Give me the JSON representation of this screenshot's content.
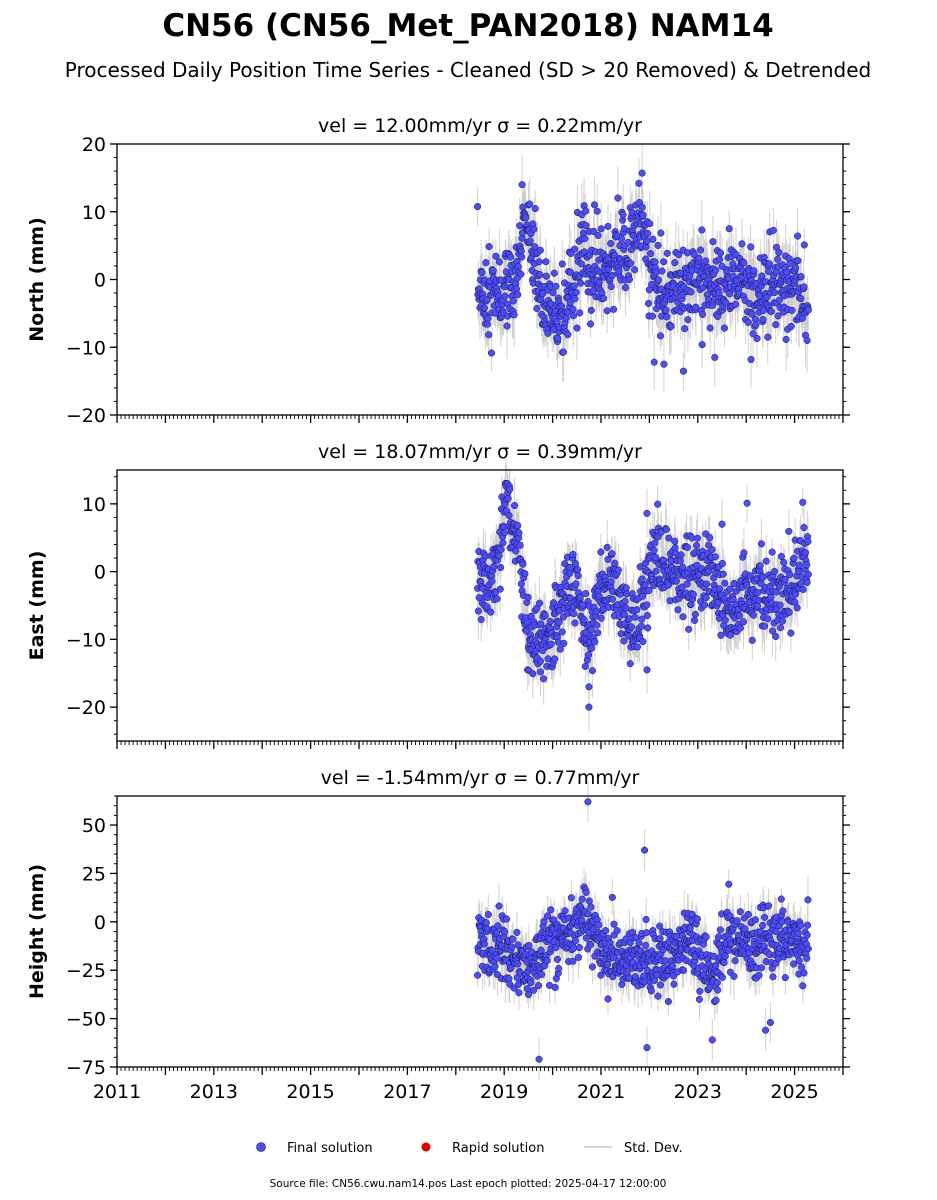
{
  "figure": {
    "title": "CN56 (CN56_Met_PAN2018) NAM14",
    "subtitle": "Processed Daily Position Time Series - Cleaned (SD > 20 Removed) & Detrended",
    "footer": "Source file: CN56.cwu.nam14.pos  Last epoch plotted: 2025-04-17 12:00:00",
    "legend": {
      "placement": "bottom-center",
      "items": [
        {
          "label": "Final solution",
          "marker": "circle",
          "color": "#4B4BFF"
        },
        {
          "label": "Rapid solution",
          "marker": "circle",
          "color": "#E00000"
        },
        {
          "label": "Std. Dev.",
          "marker": "line",
          "color": "#C8C8C8"
        }
      ]
    },
    "colors": {
      "final": "#4B4BFF",
      "marker_edge": "#1a1a40",
      "stddev": "#C8C8C8",
      "axis": "#000000"
    }
  },
  "chart_data": [
    {
      "type": "scatter",
      "component": "north",
      "title": "vel = 12.00mm/yr   σ = 0.22mm/yr",
      "ylabel": "North (mm)",
      "xlim": [
        2011.0,
        2026.0
      ],
      "ylim": [
        -20,
        20
      ],
      "yticks": [
        -20,
        -10,
        0,
        10,
        20
      ],
      "ytick_labels": [
        "−20",
        "−10",
        "0",
        "10",
        "20"
      ],
      "first_epoch": 2018.45,
      "last_epoch": 2025.29,
      "series": [
        {
          "name": "Final solution",
          "x": [
            2018.5,
            2018.75,
            2019.0,
            2019.25,
            2019.4,
            2019.6,
            2019.8,
            2020.0,
            2020.25,
            2020.5,
            2020.65,
            2020.8,
            2021.0,
            2021.2,
            2021.45,
            2021.65,
            2021.85,
            2022.0,
            2022.25,
            2022.5,
            2022.75,
            2023.0,
            2023.25,
            2023.5,
            2023.75,
            2024.0,
            2024.25,
            2024.5,
            2024.75,
            2025.0,
            2025.29
          ],
          "y": [
            -1.5,
            -2.5,
            -2.0,
            -1.0,
            9.0,
            2.0,
            -2.5,
            -4.5,
            -6.0,
            0.5,
            5.5,
            1.5,
            1.0,
            2.5,
            3.5,
            6.0,
            9.0,
            3.0,
            -3.0,
            -2.0,
            -0.5,
            1.5,
            -0.5,
            -1.5,
            0.5,
            -1.5,
            -3.0,
            0.5,
            -1.5,
            0.0,
            -2.0
          ]
        },
        {
          "name": "Std. Dev.",
          "approx_mm": 3.5
        }
      ],
      "outliers": [
        {
          "x": 2019.37,
          "y": 14.0
        },
        {
          "x": 2021.85,
          "y": 15.7
        },
        {
          "x": 2022.1,
          "y": -12.2
        },
        {
          "x": 2022.3,
          "y": -12.5
        },
        {
          "x": 2023.35,
          "y": -11.5
        },
        {
          "x": 2024.1,
          "y": -11.8
        }
      ]
    },
    {
      "type": "scatter",
      "component": "east",
      "title": "vel = 18.07mm/yr   σ = 0.39mm/yr",
      "ylabel": "East (mm)",
      "xlim": [
        2011.0,
        2026.0
      ],
      "ylim": [
        -25,
        15
      ],
      "yticks": [
        -20,
        -10,
        0,
        10
      ],
      "ytick_labels": [
        "−20",
        "−10",
        "0",
        "10"
      ],
      "first_epoch": 2018.45,
      "last_epoch": 2025.29,
      "series": [
        {
          "name": "Final solution",
          "x": [
            2018.5,
            2018.7,
            2018.9,
            2019.05,
            2019.2,
            2019.35,
            2019.5,
            2019.7,
            2019.9,
            2020.1,
            2020.3,
            2020.5,
            2020.65,
            2020.8,
            2021.0,
            2021.2,
            2021.4,
            2021.6,
            2021.8,
            2022.0,
            2022.2,
            2022.5,
            2022.75,
            2023.0,
            2023.25,
            2023.5,
            2023.75,
            2024.0,
            2024.25,
            2024.5,
            2024.75,
            2025.0,
            2025.29
          ],
          "y": [
            -1.0,
            -1.5,
            2.0,
            11.0,
            7.0,
            0.0,
            -11.0,
            -10.0,
            -9.0,
            -7.5,
            -1.5,
            -4.0,
            -7.5,
            -10.0,
            -3.0,
            -1.0,
            -5.0,
            -8.0,
            -7.0,
            0.5,
            2.0,
            -1.0,
            -0.5,
            -1.0,
            0.0,
            -4.0,
            -6.5,
            -4.0,
            -3.0,
            -3.5,
            -3.0,
            -1.0,
            1.5
          ]
        },
        {
          "name": "Std. Dev.",
          "approx_mm": 3.0
        }
      ],
      "outliers": [
        {
          "x": 2020.75,
          "y": -17.0
        },
        {
          "x": 2020.75,
          "y": -20.0
        },
        {
          "x": 2021.95,
          "y": -14.5
        },
        {
          "x": 2019.75,
          "y": -14.8
        },
        {
          "x": 2021.95,
          "y": 8.6
        },
        {
          "x": 2023.5,
          "y": 7.0
        }
      ]
    },
    {
      "type": "scatter",
      "component": "height",
      "title": "vel = -1.54mm/yr   σ = 0.77mm/yr",
      "ylabel": "Height (mm)",
      "xlim": [
        2011.0,
        2026.0
      ],
      "ylim": [
        -75,
        65
      ],
      "yticks": [
        -75,
        -50,
        -25,
        0,
        25,
        50
      ],
      "ytick_labels": [
        "−75",
        "−50",
        "−25",
        "0",
        "25",
        "50"
      ],
      "xticks": [
        2011,
        2013,
        2015,
        2017,
        2019,
        2021,
        2023,
        2025
      ],
      "xtick_labels": [
        "2011",
        "2013",
        "2015",
        "2017",
        "2019",
        "2021",
        "2023",
        "2025"
      ],
      "first_epoch": 2018.45,
      "last_epoch": 2025.29,
      "series": [
        {
          "name": "Final solution",
          "x": [
            2018.5,
            2018.75,
            2019.0,
            2019.25,
            2019.5,
            2019.75,
            2020.0,
            2020.25,
            2020.5,
            2020.7,
            2020.9,
            2021.1,
            2021.35,
            2021.6,
            2021.85,
            2022.1,
            2022.35,
            2022.6,
            2022.85,
            2023.1,
            2023.35,
            2023.6,
            2023.85,
            2024.1,
            2024.35,
            2024.6,
            2024.85,
            2025.1,
            2025.29
          ],
          "y": [
            -10,
            -15,
            -12,
            -20,
            -25,
            -15,
            -10,
            -5,
            -3,
            5,
            -10,
            -15,
            -18,
            -20,
            -20,
            -22,
            -18,
            -15,
            -10,
            -22,
            -28,
            -8,
            -5,
            -12,
            -10,
            -8,
            -12,
            -10,
            -12
          ]
        },
        {
          "name": "Std. Dev.",
          "approx_mm": 9.0
        }
      ],
      "outliers": [
        {
          "x": 2020.73,
          "y": 62.0
        },
        {
          "x": 2019.72,
          "y": -71.0
        },
        {
          "x": 2021.95,
          "y": -65.0
        },
        {
          "x": 2021.9,
          "y": 37.0
        },
        {
          "x": 2023.3,
          "y": -61.0
        },
        {
          "x": 2024.5,
          "y": -52.0
        },
        {
          "x": 2024.4,
          "y": -56.0
        }
      ]
    }
  ]
}
